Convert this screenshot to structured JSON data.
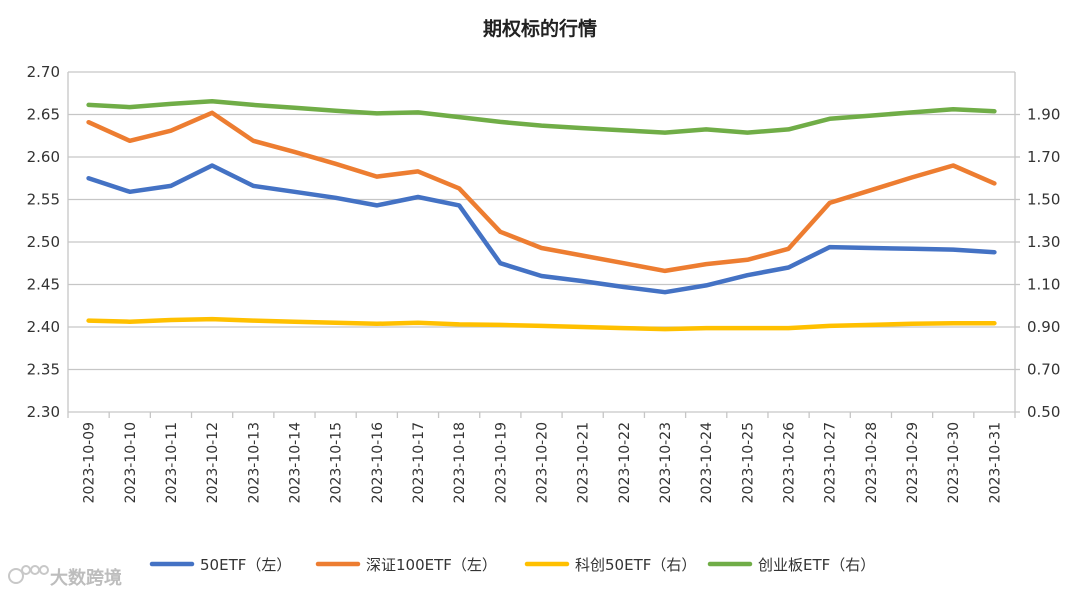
{
  "watermark": {
    "text": "大数跨境"
  },
  "chart_data": {
    "type": "line",
    "title": "期权标的行情",
    "categories": [
      "2023-10-09",
      "2023-10-10",
      "2023-10-11",
      "2023-10-12",
      "2023-10-13",
      "2023-10-14",
      "2023-10-15",
      "2023-10-16",
      "2023-10-17",
      "2023-10-18",
      "2023-10-19",
      "2023-10-20",
      "2023-10-21",
      "2023-10-22",
      "2023-10-23",
      "2023-10-24",
      "2023-10-25",
      "2023-10-26",
      "2023-10-27",
      "2023-10-28",
      "2023-10-29",
      "2023-10-30",
      "2023-10-31"
    ],
    "y_left": {
      "min": 2.3,
      "max": 2.7,
      "step": 0.05,
      "ticks": [
        "2.30",
        "2.35",
        "2.40",
        "2.45",
        "2.50",
        "2.55",
        "2.60",
        "2.65",
        "2.70"
      ]
    },
    "y_right": {
      "min": 0.5,
      "max": 2.1,
      "step": 0.2,
      "ticks": [
        "0.50",
        "0.70",
        "0.90",
        "1.10",
        "1.30",
        "1.50",
        "1.70",
        "1.90"
      ]
    },
    "series": [
      {
        "name": "50ETF（左）",
        "axis": "left",
        "color": "#4472C4",
        "values": [
          2.575,
          2.559,
          2.566,
          2.59,
          2.566,
          2.559,
          2.552,
          2.543,
          2.553,
          2.543,
          2.475,
          2.46,
          2.454,
          2.447,
          2.441,
          2.449,
          2.461,
          2.47,
          2.494,
          2.493,
          2.492,
          2.491,
          2.488
        ]
      },
      {
        "name": "深证100ETF（左）",
        "axis": "left",
        "color": "#ED7D31",
        "values": [
          2.641,
          2.619,
          2.631,
          2.652,
          2.619,
          2.606,
          2.592,
          2.577,
          2.583,
          2.563,
          2.512,
          2.493,
          2.484,
          2.475,
          2.466,
          2.474,
          2.479,
          2.492,
          2.546,
          2.561,
          2.576,
          2.59,
          2.569
        ]
      },
      {
        "name": "科创50ETF（右）",
        "axis": "right",
        "color": "#FFC000",
        "values": [
          0.93,
          0.925,
          0.933,
          0.937,
          0.93,
          0.925,
          0.92,
          0.915,
          0.92,
          0.912,
          0.91,
          0.905,
          0.9,
          0.895,
          0.89,
          0.895,
          0.895,
          0.895,
          0.905,
          0.91,
          0.915,
          0.918,
          0.918
        ]
      },
      {
        "name": "创业板ETF（右）",
        "axis": "right",
        "color": "#70AD47",
        "values": [
          1.945,
          1.935,
          1.95,
          1.962,
          1.945,
          1.932,
          1.918,
          1.905,
          1.91,
          1.888,
          1.865,
          1.848,
          1.836,
          1.825,
          1.815,
          1.83,
          1.815,
          1.83,
          1.88,
          1.895,
          1.91,
          1.925,
          1.915
        ]
      }
    ],
    "legend_position": "bottom"
  }
}
